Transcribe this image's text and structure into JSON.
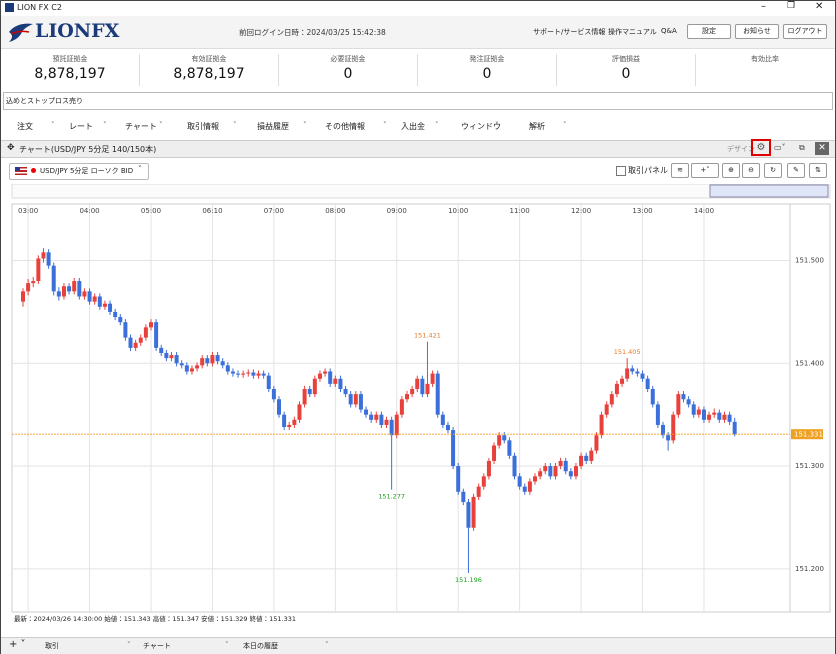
{
  "window": {
    "title": "LION FX C2"
  },
  "header": {
    "logo": "LIONFX",
    "last_login": "前回ログイン日時：2024/03/25 15:42:38",
    "links": [
      "サポート/サービス情報",
      "操作マニュアル",
      "Q&A"
    ],
    "buttons": [
      "設定",
      "お知らせ",
      "ログアウト"
    ]
  },
  "account": [
    {
      "label": "預託証拠金",
      "value": "8,878,197"
    },
    {
      "label": "有効証拠金",
      "value": "8,878,197"
    },
    {
      "label": "必要証拠金",
      "value": "0"
    },
    {
      "label": "発注証拠金",
      "value": "0"
    },
    {
      "label": "評価損益",
      "value": "0"
    },
    {
      "label": "有効比率"
    }
  ],
  "ticker": "込めとストップロス売り",
  "menu": [
    "注文",
    "レート",
    "チャート",
    "取引情報",
    "損益履歴",
    "その他情報",
    "入出金",
    "ウィンドウ",
    "解析"
  ],
  "chart_panel": {
    "title": "チャート(USD/JPY 5分足 140/150本)",
    "design": "デザイン",
    "symbol": "USD/JPY 5分足 ローソク BID",
    "trade_panel": "取引パネル"
  },
  "chart_data": {
    "type": "candlestick",
    "up_color": "#e8413c",
    "down_color": "#3b6fd9",
    "ylim": [
      151.158,
      151.555
    ],
    "yticks": [
      {
        "value": 151.2,
        "label": "151.200"
      },
      {
        "value": 151.3,
        "label": "151.300"
      },
      {
        "value": 151.4,
        "label": "151.400"
      },
      {
        "value": 151.5,
        "label": "151.500"
      }
    ],
    "grid": true,
    "categories": [
      null,
      "03:00",
      null,
      null,
      null,
      null,
      null,
      null,
      null,
      null,
      null,
      null,
      null,
      "04:00",
      null,
      null,
      null,
      null,
      null,
      null,
      null,
      null,
      null,
      null,
      null,
      "05:00",
      null,
      null,
      null,
      null,
      null,
      null,
      null,
      null,
      null,
      null,
      null,
      "06:10",
      null,
      null,
      null,
      null,
      null,
      null,
      null,
      null,
      null,
      null,
      null,
      "07:00",
      null,
      null,
      null,
      null,
      null,
      null,
      null,
      null,
      null,
      null,
      null,
      "08:00",
      null,
      null,
      null,
      null,
      null,
      null,
      null,
      null,
      null,
      null,
      null,
      "09:00",
      null,
      null,
      null,
      null,
      null,
      null,
      null,
      null,
      null,
      null,
      null,
      "10:00",
      null,
      null,
      null,
      null,
      null,
      null,
      null,
      null,
      null,
      null,
      null,
      "11:00",
      null,
      null,
      null,
      null,
      null,
      null,
      null,
      null,
      null,
      null,
      null,
      "12:00",
      null,
      null,
      null,
      null,
      null,
      null,
      null,
      null,
      null,
      null,
      null,
      "13:00",
      null,
      null,
      null,
      null,
      null,
      null,
      null,
      null,
      null,
      null,
      null,
      "14:00",
      null,
      null,
      null,
      null,
      null,
      null
    ],
    "ohlc": [
      [
        151.46,
        151.473,
        151.455,
        151.47
      ],
      [
        151.47,
        151.482,
        151.466,
        151.478
      ],
      [
        151.478,
        151.484,
        151.474,
        151.48
      ],
      [
        151.48,
        151.505,
        151.477,
        151.502
      ],
      [
        151.502,
        151.512,
        151.498,
        151.508
      ],
      [
        151.508,
        151.511,
        151.492,
        151.495
      ],
      [
        151.495,
        151.498,
        151.466,
        151.47
      ],
      [
        151.47,
        151.474,
        151.461,
        151.465
      ],
      [
        151.465,
        151.478,
        151.462,
        151.475
      ],
      [
        151.475,
        151.478,
        151.467,
        151.47
      ],
      [
        151.47,
        151.483,
        151.467,
        151.48
      ],
      [
        151.48,
        151.483,
        151.462,
        151.465
      ],
      [
        151.465,
        151.473,
        151.462,
        151.47
      ],
      [
        151.47,
        151.473,
        151.457,
        151.46
      ],
      [
        151.46,
        151.468,
        151.457,
        151.465
      ],
      [
        151.465,
        151.468,
        151.452,
        151.455
      ],
      [
        151.455,
        151.461,
        151.452,
        151.458
      ],
      [
        151.458,
        151.461,
        151.447,
        151.45
      ],
      [
        151.45,
        151.453,
        151.442,
        151.445
      ],
      [
        151.445,
        151.448,
        151.437,
        151.44
      ],
      [
        151.44,
        151.443,
        151.422,
        151.425
      ],
      [
        151.425,
        151.428,
        151.412,
        151.415
      ],
      [
        151.415,
        151.423,
        151.412,
        151.42
      ],
      [
        151.42,
        151.428,
        151.417,
        151.425
      ],
      [
        151.425,
        151.438,
        151.422,
        151.435
      ],
      [
        151.435,
        151.443,
        151.432,
        151.44
      ],
      [
        151.44,
        151.443,
        151.412,
        151.415
      ],
      [
        151.415,
        151.418,
        151.407,
        151.41
      ],
      [
        151.41,
        151.413,
        151.402,
        151.405
      ],
      [
        151.405,
        151.411,
        151.402,
        151.408
      ],
      [
        151.408,
        151.411,
        151.397,
        151.4
      ],
      [
        151.4,
        151.403,
        151.395,
        151.398
      ],
      [
        151.398,
        151.401,
        151.389,
        151.392
      ],
      [
        151.392,
        151.398,
        151.389,
        151.395
      ],
      [
        151.395,
        151.401,
        151.392,
        151.398
      ],
      [
        151.398,
        151.408,
        151.395,
        151.405
      ],
      [
        151.405,
        151.408,
        151.397,
        151.4
      ],
      [
        151.4,
        151.411,
        151.397,
        151.408
      ],
      [
        151.408,
        151.411,
        151.399,
        151.402
      ],
      [
        151.402,
        151.405,
        151.395,
        151.398
      ],
      [
        151.398,
        151.401,
        151.389,
        151.392
      ],
      [
        151.392,
        151.395,
        151.387,
        151.39
      ],
      [
        151.39,
        151.393,
        151.386,
        151.389
      ],
      [
        151.389,
        151.393,
        151.386,
        151.39
      ],
      [
        151.39,
        151.394,
        151.387,
        151.391
      ],
      [
        151.391,
        151.394,
        151.385,
        151.388
      ],
      [
        151.388,
        151.393,
        151.385,
        151.39
      ],
      [
        151.39,
        151.393,
        151.385,
        151.388
      ],
      [
        151.388,
        151.391,
        151.372,
        151.375
      ],
      [
        151.375,
        151.378,
        151.362,
        151.365
      ],
      [
        151.365,
        151.368,
        151.347,
        151.35
      ],
      [
        151.35,
        151.353,
        151.335,
        151.338
      ],
      [
        151.338,
        151.343,
        151.335,
        151.34
      ],
      [
        151.34,
        151.348,
        151.337,
        151.345
      ],
      [
        151.345,
        151.363,
        151.342,
        151.36
      ],
      [
        151.36,
        151.378,
        151.357,
        151.375
      ],
      [
        151.375,
        151.378,
        151.367,
        151.37
      ],
      [
        151.37,
        151.388,
        151.367,
        151.385
      ],
      [
        151.385,
        151.393,
        151.382,
        151.39
      ],
      [
        151.39,
        151.395,
        151.387,
        151.392
      ],
      [
        151.392,
        151.395,
        151.377,
        151.38
      ],
      [
        151.38,
        151.388,
        151.377,
        151.385
      ],
      [
        151.385,
        151.388,
        151.372,
        151.375
      ],
      [
        151.375,
        151.378,
        151.367,
        151.37
      ],
      [
        151.37,
        151.373,
        151.357,
        151.36
      ],
      [
        151.36,
        151.373,
        151.357,
        151.37
      ],
      [
        151.37,
        151.373,
        151.352,
        151.355
      ],
      [
        151.355,
        151.358,
        151.347,
        151.35
      ],
      [
        151.35,
        151.353,
        151.342,
        151.345
      ],
      [
        151.345,
        151.353,
        151.342,
        151.35
      ],
      [
        151.35,
        151.353,
        151.337,
        151.34
      ],
      [
        151.34,
        151.348,
        151.337,
        151.345
      ],
      [
        151.345,
        151.348,
        151.277,
        151.33
      ],
      [
        151.33,
        151.353,
        151.327,
        151.35
      ],
      [
        151.35,
        151.368,
        151.347,
        151.365
      ],
      [
        151.365,
        151.373,
        151.362,
        151.37
      ],
      [
        151.37,
        151.378,
        151.367,
        151.375
      ],
      [
        151.375,
        151.388,
        151.372,
        151.385
      ],
      [
        151.385,
        151.388,
        151.367,
        151.37
      ],
      [
        151.37,
        151.421,
        151.367,
        151.38
      ],
      [
        151.38,
        151.393,
        151.377,
        151.39
      ],
      [
        151.39,
        151.393,
        151.347,
        151.35
      ],
      [
        151.35,
        151.353,
        151.337,
        151.34
      ],
      [
        151.34,
        151.343,
        151.332,
        151.335
      ],
      [
        151.335,
        151.338,
        151.297,
        151.3
      ],
      [
        151.3,
        151.303,
        151.272,
        151.275
      ],
      [
        151.275,
        151.278,
        151.262,
        151.265
      ],
      [
        151.265,
        151.268,
        151.196,
        151.24
      ],
      [
        151.24,
        151.273,
        151.237,
        151.27
      ],
      [
        151.27,
        151.283,
        151.267,
        151.28
      ],
      [
        151.28,
        151.293,
        151.277,
        151.29
      ],
      [
        151.29,
        151.308,
        151.287,
        151.305
      ],
      [
        151.305,
        151.323,
        151.302,
        151.32
      ],
      [
        151.32,
        151.333,
        151.317,
        151.33
      ],
      [
        151.33,
        151.333,
        151.322,
        151.325
      ],
      [
        151.325,
        151.328,
        151.307,
        151.31
      ],
      [
        151.31,
        151.313,
        151.287,
        151.29
      ],
      [
        151.29,
        151.293,
        151.277,
        151.28
      ],
      [
        151.28,
        151.283,
        151.272,
        151.275
      ],
      [
        151.275,
        151.288,
        151.272,
        151.285
      ],
      [
        151.285,
        151.293,
        151.282,
        151.29
      ],
      [
        151.29,
        151.298,
        151.287,
        151.295
      ],
      [
        151.295,
        151.303,
        151.292,
        151.3
      ],
      [
        151.3,
        151.303,
        151.287,
        151.29
      ],
      [
        151.29,
        151.303,
        151.287,
        151.3
      ],
      [
        151.3,
        151.308,
        151.297,
        151.305
      ],
      [
        151.305,
        151.308,
        151.292,
        151.295
      ],
      [
        151.295,
        151.298,
        151.287,
        151.29
      ],
      [
        151.29,
        151.303,
        151.287,
        151.3
      ],
      [
        151.3,
        151.313,
        151.297,
        151.31
      ],
      [
        151.31,
        151.313,
        151.302,
        151.305
      ],
      [
        151.305,
        151.318,
        151.302,
        151.315
      ],
      [
        151.315,
        151.333,
        151.312,
        151.33
      ],
      [
        151.33,
        151.353,
        151.327,
        151.35
      ],
      [
        151.35,
        151.363,
        151.347,
        151.36
      ],
      [
        151.36,
        151.373,
        151.357,
        151.37
      ],
      [
        151.37,
        151.383,
        151.367,
        151.38
      ],
      [
        151.38,
        151.388,
        151.377,
        151.385
      ],
      [
        151.385,
        151.405,
        151.382,
        151.395
      ],
      [
        151.395,
        151.398,
        151.389,
        151.392
      ],
      [
        151.392,
        151.395,
        151.387,
        151.39
      ],
      [
        151.39,
        151.393,
        151.382,
        151.385
      ],
      [
        151.385,
        151.388,
        151.372,
        151.375
      ],
      [
        151.375,
        151.378,
        151.357,
        151.36
      ],
      [
        151.36,
        151.363,
        151.337,
        151.34
      ],
      [
        151.34,
        151.343,
        151.327,
        151.33
      ],
      [
        151.33,
        151.333,
        151.315,
        151.325
      ],
      [
        151.325,
        151.353,
        151.322,
        151.35
      ],
      [
        151.35,
        151.373,
        151.347,
        151.37
      ],
      [
        151.37,
        151.373,
        151.362,
        151.365
      ],
      [
        151.365,
        151.368,
        151.357,
        151.36
      ],
      [
        151.36,
        151.363,
        151.347,
        151.35
      ],
      [
        151.35,
        151.358,
        151.347,
        151.355
      ],
      [
        151.355,
        151.358,
        151.342,
        151.345
      ],
      [
        151.345,
        151.353,
        151.342,
        151.35
      ],
      [
        151.35,
        151.356,
        151.347,
        151.352
      ],
      [
        151.352,
        151.355,
        151.342,
        151.345
      ],
      [
        151.345,
        151.353,
        151.342,
        151.35
      ],
      [
        151.35,
        151.353,
        151.34,
        151.343
      ],
      [
        151.343,
        151.347,
        151.329,
        151.331
      ]
    ],
    "status": "最新：2024/03/26 14:30:00 始値：151.343 高値：151.347 安値：151.329 終値：151.331"
  },
  "tabs": [
    "取引",
    "チャート",
    "本日の履歴"
  ]
}
